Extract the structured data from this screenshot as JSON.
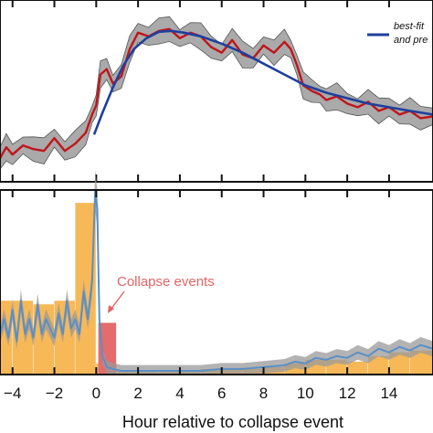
{
  "chart_data": [
    {
      "type": "line",
      "panel": "top",
      "xlim": [
        -4.6,
        16.1
      ],
      "ylim": [
        0,
        1
      ],
      "grid": false,
      "legend_position": "top-right",
      "legend": [
        {
          "label": "best-fit",
          "color": "#1f3f9e"
        },
        {
          "label": "and pre",
          "color": "#1f3f9e"
        }
      ],
      "series": [
        {
          "color": "#c0151b",
          "band_color": "#aaaaaa",
          "x": [
            -4.6,
            -4.3,
            -4.0,
            -3.5,
            -3.0,
            -2.5,
            -2.0,
            -1.5,
            -1.0,
            -0.5,
            -0.2,
            0.0,
            0.2,
            0.5,
            0.8,
            1.2,
            1.6,
            2.0,
            2.5,
            3.0,
            3.5,
            4.0,
            4.5,
            5.0,
            5.5,
            6.0,
            6.5,
            7.0,
            7.5,
            8.0,
            8.5,
            9.0,
            9.3,
            9.6,
            9.9,
            10.3,
            10.7,
            11.0,
            11.5,
            12.0,
            12.5,
            13.0,
            13.5,
            14.0,
            14.5,
            15.0,
            15.5,
            16.1
          ],
          "values": [
            0.13,
            0.19,
            0.15,
            0.2,
            0.18,
            0.17,
            0.24,
            0.17,
            0.21,
            0.27,
            0.37,
            0.42,
            0.59,
            0.62,
            0.54,
            0.58,
            0.73,
            0.82,
            0.8,
            0.83,
            0.84,
            0.79,
            0.82,
            0.8,
            0.74,
            0.71,
            0.78,
            0.7,
            0.68,
            0.75,
            0.71,
            0.77,
            0.73,
            0.64,
            0.53,
            0.5,
            0.48,
            0.45,
            0.47,
            0.43,
            0.41,
            0.44,
            0.39,
            0.41,
            0.37,
            0.39,
            0.35,
            0.36
          ]
        },
        {
          "color": "#1f3f9e",
          "x": [
            -0.1,
            0.3,
            0.8,
            1.3,
            1.8,
            2.4,
            3.0,
            3.6,
            4.2,
            5.0,
            6.0,
            7.0,
            8.0,
            9.0,
            10.0,
            11.0,
            12.0,
            13.0,
            14.0,
            15.0,
            16.1
          ],
          "values": [
            0.26,
            0.38,
            0.52,
            0.64,
            0.73,
            0.79,
            0.825,
            0.83,
            0.82,
            0.8,
            0.76,
            0.71,
            0.65,
            0.59,
            0.53,
            0.49,
            0.46,
            0.43,
            0.41,
            0.39,
            0.37
          ]
        }
      ]
    },
    {
      "type": "area",
      "panel": "bottom",
      "xlabel": "Hour relative to collapse event",
      "xlim": [
        -4.6,
        16.1
      ],
      "ylim": [
        0,
        1
      ],
      "xticks": [
        -4,
        -2,
        0,
        2,
        4,
        6,
        8,
        10,
        12,
        14
      ],
      "xtick_labels": [
        "−4",
        "−2",
        "0",
        "2",
        "4",
        "6",
        "8",
        "10",
        "12",
        "14"
      ],
      "grid": false,
      "histogram": {
        "color": "#f7b857",
        "bin_edges": [
          -4.6,
          -4,
          -3,
          -2,
          -1,
          0,
          1,
          2,
          3,
          4,
          5,
          6,
          7,
          8,
          9,
          10,
          11,
          12,
          13,
          14,
          15,
          16.1
        ],
        "values": [
          0.4,
          0.4,
          0.38,
          0.4,
          0.93,
          0.06,
          0.02,
          0.02,
          0.02,
          0.02,
          0.03,
          0.03,
          0.03,
          0.04,
          0.06,
          0.08,
          0.08,
          0.07,
          0.1,
          0.12,
          0.13
        ]
      },
      "collapse_bar": {
        "x0": 0.1,
        "x1": 0.95,
        "value": 0.28,
        "color": "#e46c6c"
      },
      "annotation": {
        "text": "Collapse events",
        "color": "#e46464",
        "arrow_to": {
          "x": 0.6,
          "y": 0.3
        }
      },
      "series": [
        {
          "color": "#5b8fc6",
          "band_color": "#999999",
          "x": [
            -4.6,
            -4.4,
            -4.2,
            -4.0,
            -3.8,
            -3.6,
            -3.4,
            -3.2,
            -3.0,
            -2.8,
            -2.6,
            -2.4,
            -2.2,
            -2.0,
            -1.8,
            -1.6,
            -1.4,
            -1.2,
            -1.0,
            -0.8,
            -0.6,
            -0.4,
            -0.2,
            -0.05,
            0.05,
            0.15,
            0.3,
            0.5,
            0.8,
            1.2,
            1.6,
            2.0,
            3.0,
            4.0,
            5.0,
            6.0,
            7.0,
            8.0,
            9.0,
            9.5,
            10.0,
            10.5,
            11.0,
            11.5,
            12.0,
            12.5,
            13.0,
            13.5,
            14.0,
            14.5,
            15.0,
            15.5,
            16.1
          ],
          "values": [
            0.22,
            0.3,
            0.2,
            0.35,
            0.18,
            0.4,
            0.22,
            0.3,
            0.2,
            0.38,
            0.22,
            0.3,
            0.25,
            0.2,
            0.33,
            0.22,
            0.4,
            0.25,
            0.3,
            0.22,
            0.45,
            0.3,
            0.5,
            1.0,
            0.9,
            0.3,
            0.1,
            0.04,
            0.03,
            0.02,
            0.02,
            0.02,
            0.02,
            0.02,
            0.02,
            0.03,
            0.03,
            0.04,
            0.05,
            0.07,
            0.06,
            0.09,
            0.08,
            0.1,
            0.09,
            0.12,
            0.1,
            0.14,
            0.12,
            0.15,
            0.13,
            0.16,
            0.14
          ]
        }
      ]
    }
  ]
}
